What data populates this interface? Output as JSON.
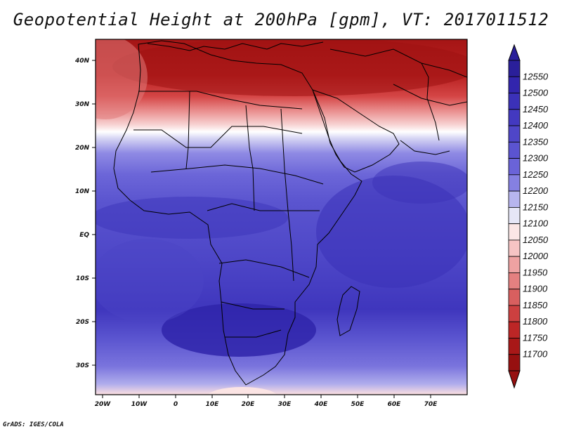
{
  "title": "Geopotential Height at 200hPa [gpm], VT: 2017011512",
  "credit": "GrADS: IGES/COLA",
  "axes": {
    "lon_labels": [
      "20W",
      "10W",
      "0",
      "10E",
      "20E",
      "30E",
      "40E",
      "50E",
      "60E",
      "70E"
    ],
    "lat_labels": [
      "40N",
      "30N",
      "20N",
      "10N",
      "EQ",
      "10S",
      "20S",
      "30S"
    ]
  },
  "colorbar": {
    "labels": [
      "12550",
      "12500",
      "12450",
      "12400",
      "12350",
      "12300",
      "12250",
      "12200",
      "12150",
      "12100",
      "12050",
      "12000",
      "11950",
      "11900",
      "11850",
      "11800",
      "11750",
      "11700"
    ],
    "colors": [
      "#2a1f9a",
      "#3225ad",
      "#3b31b8",
      "#4339c0",
      "#4f46c8",
      "#5b54d0",
      "#6a63d8",
      "#8580e2",
      "#b7b5ee",
      "#e6e6f7",
      "#fbe6e6",
      "#f6c4c4",
      "#eea2a2",
      "#e48080",
      "#d85f5f",
      "#cc4040",
      "#bc2626",
      "#a81818",
      "#961010"
    ]
  },
  "map": {
    "region": "Africa",
    "lon_range": [
      -22,
      80
    ],
    "lat_range": [
      -37,
      45
    ]
  }
}
